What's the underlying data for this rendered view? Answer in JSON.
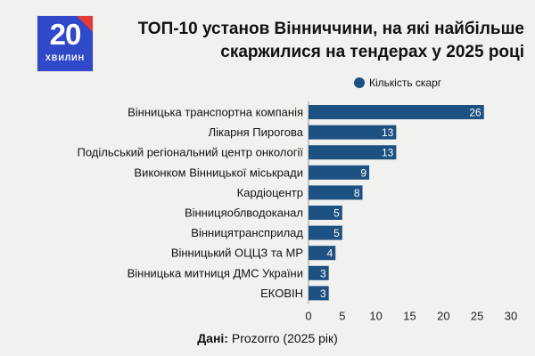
{
  "logo": {
    "number": "20",
    "word": "ХВИЛИН"
  },
  "title": {
    "line1": "ТОП-10 установ Вінниччини, на які найбільше",
    "line2": "скаржилися на тендерах у 2025 році"
  },
  "colors": {
    "bar": "#1d5181",
    "brand": "#2f49c8",
    "accent": "#e53935"
  },
  "chart_data": {
    "type": "bar",
    "orientation": "horizontal",
    "categories": [
      "Вінницька транспортна компанія",
      "Лікарня Пирогова",
      "Подільський регіональний центр онкології",
      "Виконком Вінницької міськради",
      "Кардіоцентр",
      "Вінницяоблводоканал",
      "Вінницятрансприлад",
      "Вінницький ОЦЦЗ та МР",
      "Вінницька митниця ДМС України",
      "ЕКОВІН"
    ],
    "values": [
      26,
      13,
      13,
      9,
      8,
      5,
      5,
      4,
      3,
      3
    ],
    "series_name": "Кількість скарг",
    "xlim": [
      0,
      30
    ],
    "xticks": [
      0,
      5,
      10,
      15,
      20,
      25,
      30
    ],
    "data_labels": true,
    "legend": "top-right"
  },
  "source": {
    "label": "Дані:",
    "text": "Prozorro (2025 рік)"
  }
}
